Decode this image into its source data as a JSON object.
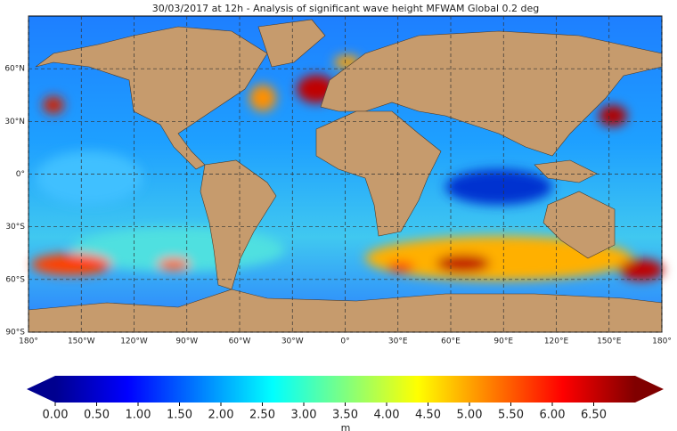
{
  "chart_data": {
    "type": "map",
    "title": "30/03/2017 at 12h - Analysis of significant wave height MFWAM Global 0.2 deg",
    "xlim": [
      -180,
      180
    ],
    "ylim": [
      -90,
      90
    ],
    "xticks": [
      {
        "value": -180,
        "label": "180°"
      },
      {
        "value": -150,
        "label": "150°W"
      },
      {
        "value": -120,
        "label": "120°W"
      },
      {
        "value": -90,
        "label": "90°W"
      },
      {
        "value": -60,
        "label": "60°W"
      },
      {
        "value": -30,
        "label": "30°W"
      },
      {
        "value": 0,
        "label": "0°"
      },
      {
        "value": 30,
        "label": "30°E"
      },
      {
        "value": 60,
        "label": "60°E"
      },
      {
        "value": 90,
        "label": "90°E"
      },
      {
        "value": 120,
        "label": "120°E"
      },
      {
        "value": 150,
        "label": "150°E"
      },
      {
        "value": 180,
        "label": "180°"
      }
    ],
    "yticks": [
      {
        "value": 60,
        "label": "60°N"
      },
      {
        "value": 30,
        "label": "30°N"
      },
      {
        "value": 0,
        "label": "0°"
      },
      {
        "value": -30,
        "label": "30°S"
      },
      {
        "value": -60,
        "label": "60°S"
      },
      {
        "value": -90,
        "label": "90°S"
      }
    ],
    "grid": true,
    "colorbar": {
      "label": "m",
      "clim": [
        0,
        7
      ],
      "ticks": [
        {
          "value": 0,
          "label": "0.00"
        },
        {
          "value": 0.5,
          "label": "0.50"
        },
        {
          "value": 1,
          "label": "1.00"
        },
        {
          "value": 1.5,
          "label": "1.50"
        },
        {
          "value": 2,
          "label": "2.00"
        },
        {
          "value": 2.5,
          "label": "2.50"
        },
        {
          "value": 3,
          "label": "3.00"
        },
        {
          "value": 3.5,
          "label": "3.50"
        },
        {
          "value": 4,
          "label": "4.00"
        },
        {
          "value": 4.5,
          "label": "4.50"
        },
        {
          "value": 5,
          "label": "5.00"
        },
        {
          "value": 5.5,
          "label": "5.50"
        },
        {
          "value": 6,
          "label": "6.00"
        },
        {
          "value": 6.5,
          "label": "6.50"
        }
      ]
    }
  }
}
